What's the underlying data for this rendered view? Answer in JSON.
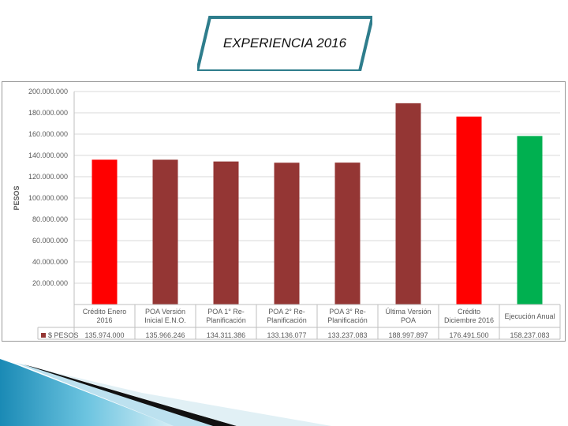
{
  "slide": {
    "title": "EXPERIENCIA 2016"
  },
  "chart_data": {
    "type": "bar",
    "ylabel": "PESOS",
    "ylim": [
      0,
      200000000
    ],
    "y_tick_values": [
      0,
      20000000,
      40000000,
      60000000,
      80000000,
      100000000,
      120000000,
      140000000,
      160000000,
      180000000,
      200000000
    ],
    "y_tick_labels": [
      "",
      "20.000.000",
      "40.000.000",
      "60.000.000",
      "80.000.000",
      "100.000.000",
      "120.000.000",
      "140.000.000",
      "160.000.000",
      "180.000.000",
      "200.000.000"
    ],
    "grid": true,
    "data_table": true,
    "categories": [
      [
        "Crédito Enero",
        "2016"
      ],
      [
        "POA Versión",
        "Inicial E.N.O."
      ],
      [
        "POA 1° Re-",
        "Planificación"
      ],
      [
        "POA 2° Re-",
        "Planificación"
      ],
      [
        "POA 3° Re-",
        "Planificación"
      ],
      [
        "Última Versión",
        "POA"
      ],
      [
        "Crédito",
        "Diciembre 2016"
      ],
      [
        "Ejecución Anual"
      ]
    ],
    "series": [
      {
        "name": "$ PESOS",
        "color": "#943634",
        "values": [
          135974000,
          135966246,
          134311386,
          133136077,
          133237083,
          188997897,
          176491500,
          158237083
        ],
        "value_labels": [
          "135.974.000",
          "135.966.246",
          "134.311.386",
          "133.136.077",
          "133.237.083",
          "188.997.897",
          "176.491.500",
          "158.237.083"
        ],
        "bar_colors": [
          "#ff0000",
          "#943634",
          "#943634",
          "#943634",
          "#943634",
          "#943634",
          "#ff0000",
          "#00b050"
        ]
      }
    ]
  }
}
